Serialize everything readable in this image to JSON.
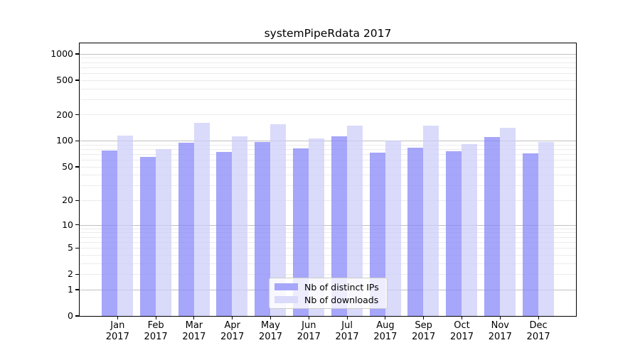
{
  "title": "systemPipeRdata 2017",
  "chart_data": {
    "type": "bar",
    "title": "systemPipeRdata 2017",
    "categories": [
      "Jan 2017",
      "Feb 2017",
      "Mar 2017",
      "Apr 2017",
      "May 2017",
      "Jun 2017",
      "Jul 2017",
      "Aug 2017",
      "Sep 2017",
      "Oct 2017",
      "Nov 2017",
      "Dec 2017"
    ],
    "series": [
      {
        "name": "Nb of distinct IPs",
        "color": "#a6a6fa",
        "color_rgba": "rgba(133,133,248,0.73)",
        "values": [
          78,
          66,
          95,
          75,
          97,
          83,
          113,
          73,
          84,
          77,
          111,
          72
        ]
      },
      {
        "name": "Nb of downloads",
        "color": "#dadafb",
        "color_rgba": "rgba(204,204,250,0.73)",
        "values": [
          115,
          81,
          163,
          113,
          155,
          108,
          151,
          102,
          151,
          92,
          142,
          98
        ]
      }
    ],
    "yscale": "log1p",
    "yticks": [
      0,
      1,
      2,
      5,
      10,
      20,
      50,
      100,
      200,
      500,
      1000
    ],
    "ylim": [
      0,
      1300
    ],
    "xlabel": "",
    "ylabel": "",
    "grid": "horizontal; light minor lines at 2-9 per decade, gray major lines at 1, 10, 100, 1000",
    "legend_position": "lower center",
    "legend_entries": [
      "Nb of distinct IPs",
      "Nb of downloads"
    ]
  },
  "colors": {
    "background": "#ffffff",
    "axis": "#000000",
    "grid_major": "#c0c0c0",
    "grid_minor": "#ebebeb",
    "bar_dark": "#a6a6fa",
    "bar_light": "#dadafb"
  }
}
